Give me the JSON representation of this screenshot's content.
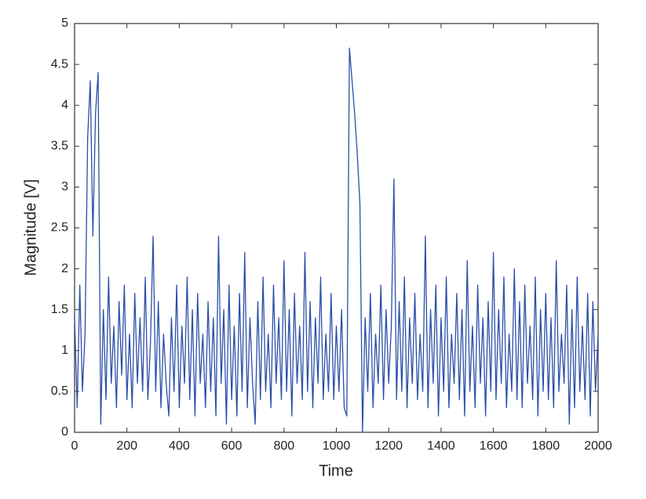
{
  "chart_data": {
    "type": "line",
    "xlabel": "Time",
    "ylabel": "Magnitude [V]",
    "color": "#2a4fa8",
    "xlim": [
      0,
      2000
    ],
    "xticks": [
      0,
      200,
      400,
      600,
      800,
      1000,
      1200,
      1400,
      1600,
      1800,
      2000
    ],
    "ylim": [
      0,
      5
    ],
    "yticks": [
      0,
      0.5,
      1,
      1.5,
      2,
      2.5,
      3,
      3.5,
      4,
      4.5,
      5
    ],
    "grid": false,
    "x": [
      0,
      10,
      20,
      30,
      40,
      50,
      60,
      70,
      80,
      90,
      100,
      110,
      120,
      130,
      140,
      150,
      160,
      170,
      180,
      190,
      200,
      210,
      220,
      230,
      240,
      250,
      260,
      270,
      280,
      290,
      300,
      310,
      320,
      330,
      340,
      350,
      360,
      370,
      380,
      390,
      400,
      410,
      420,
      430,
      440,
      450,
      460,
      470,
      480,
      490,
      500,
      510,
      520,
      530,
      540,
      550,
      560,
      570,
      580,
      590,
      600,
      610,
      620,
      630,
      640,
      650,
      660,
      670,
      680,
      690,
      700,
      710,
      720,
      730,
      740,
      750,
      760,
      770,
      780,
      790,
      800,
      810,
      820,
      830,
      840,
      850,
      860,
      870,
      880,
      890,
      900,
      910,
      920,
      930,
      940,
      950,
      960,
      970,
      980,
      990,
      1000,
      1010,
      1020,
      1030,
      1040,
      1050,
      1060,
      1070,
      1080,
      1090,
      1100,
      1110,
      1120,
      1130,
      1140,
      1150,
      1160,
      1170,
      1180,
      1190,
      1200,
      1210,
      1220,
      1230,
      1240,
      1250,
      1260,
      1270,
      1280,
      1290,
      1300,
      1310,
      1320,
      1330,
      1340,
      1350,
      1360,
      1370,
      1380,
      1390,
      1400,
      1410,
      1420,
      1430,
      1440,
      1450,
      1460,
      1470,
      1480,
      1490,
      1500,
      1510,
      1520,
      1530,
      1540,
      1550,
      1560,
      1570,
      1580,
      1590,
      1600,
      1610,
      1620,
      1630,
      1640,
      1650,
      1660,
      1670,
      1680,
      1690,
      1700,
      1710,
      1720,
      1730,
      1740,
      1750,
      1760,
      1770,
      1780,
      1790,
      1800,
      1810,
      1820,
      1830,
      1840,
      1850,
      1860,
      1870,
      1880,
      1890,
      1900,
      1910,
      1920,
      1930,
      1940,
      1950,
      1960,
      1970,
      1980,
      1990,
      2000
    ],
    "values": [
      1.4,
      0.3,
      1.8,
      0.5,
      1.2,
      3.6,
      4.3,
      2.4,
      3.9,
      4.4,
      0.1,
      1.5,
      0.4,
      1.9,
      0.6,
      1.3,
      0.3,
      1.6,
      0.7,
      1.8,
      0.4,
      1.2,
      0.3,
      1.7,
      0.6,
      1.4,
      0.5,
      1.9,
      0.4,
      1.1,
      2.4,
      0.5,
      1.6,
      0.3,
      1.2,
      0.6,
      0.2,
      1.4,
      0.5,
      1.8,
      0.3,
      1.3,
      0.6,
      1.9,
      0.4,
      1.5,
      0.2,
      1.7,
      0.6,
      1.2,
      0.3,
      1.6,
      0.5,
      1.4,
      0.2,
      2.4,
      0.6,
      1.5,
      0.1,
      1.8,
      0.4,
      1.3,
      0.2,
      1.7,
      0.5,
      2.2,
      0.3,
      1.4,
      0.6,
      0.1,
      1.6,
      0.4,
      1.9,
      0.5,
      1.2,
      0.3,
      1.8,
      0.6,
      1.4,
      0.4,
      2.1,
      0.5,
      1.5,
      0.2,
      1.7,
      0.6,
      1.3,
      0.4,
      2.2,
      0.5,
      1.6,
      0.3,
      1.4,
      0.6,
      1.9,
      0.4,
      1.2,
      0.5,
      1.7,
      0.4,
      1.3,
      0.5,
      1.5,
      0.3,
      0.2,
      4.7,
      4.3,
      3.9,
      3.4,
      2.8,
      0.0,
      1.4,
      0.5,
      1.7,
      0.3,
      1.2,
      0.6,
      1.8,
      0.4,
      1.5,
      0.6,
      1.3,
      3.1,
      0.4,
      1.6,
      0.5,
      1.9,
      0.3,
      1.4,
      0.6,
      1.7,
      0.4,
      1.2,
      0.5,
      2.4,
      0.3,
      1.5,
      0.6,
      1.8,
      0.2,
      1.4,
      0.5,
      1.9,
      0.3,
      1.2,
      0.6,
      1.7,
      0.4,
      1.5,
      0.2,
      2.1,
      0.5,
      1.3,
      0.3,
      1.8,
      0.6,
      1.4,
      0.2,
      1.6,
      0.5,
      2.2,
      0.4,
      1.5,
      0.6,
      1.9,
      0.3,
      1.2,
      0.5,
      2.0,
      0.4,
      1.6,
      0.3,
      1.8,
      0.6,
      1.3,
      0.4,
      1.9,
      0.2,
      1.5,
      0.5,
      1.7,
      0.4,
      1.4,
      0.3,
      2.1,
      0.5,
      1.2,
      0.6,
      1.8,
      0.1,
      1.5,
      0.3,
      1.9,
      0.5,
      1.3,
      0.4,
      1.7,
      0.2,
      1.6,
      0.5,
      1.2
    ]
  }
}
